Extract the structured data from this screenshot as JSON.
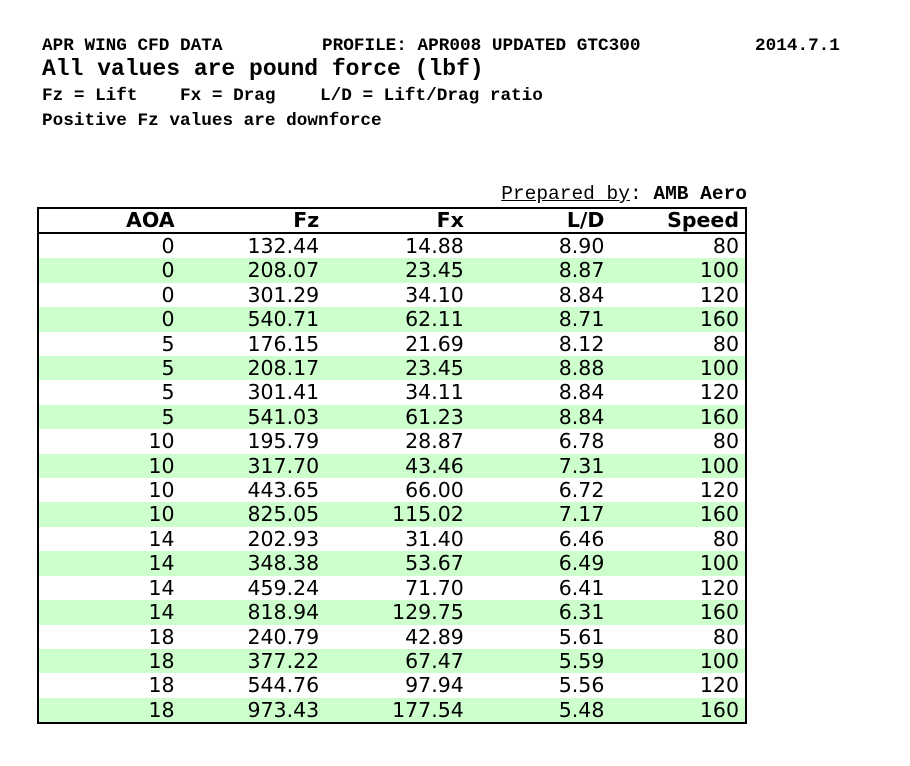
{
  "document": {
    "title": "APR WING CFD DATA",
    "profile": "PROFILE: APR008 UPDATED GTC300",
    "date": "2014.7.1",
    "subtitle": "All values are pound force (lbf)",
    "legend": {
      "fz": "Fz = Lift",
      "fx": "Fx = Drag",
      "ld": "L/D = Lift/Drag ratio"
    },
    "note": "Positive Fz values are downforce",
    "prepared_by": {
      "label": "Prepared by",
      "separator": ": ",
      "value": "AMB Aero"
    }
  },
  "table": {
    "columns": [
      "AOA",
      "Fz",
      "Fx",
      "L/D",
      "Speed"
    ],
    "rows": [
      [
        "0",
        "132.44",
        "14.88",
        "8.90",
        "80"
      ],
      [
        "0",
        "208.07",
        "23.45",
        "8.87",
        "100"
      ],
      [
        "0",
        "301.29",
        "34.10",
        "8.84",
        "120"
      ],
      [
        "0",
        "540.71",
        "62.11",
        "8.71",
        "160"
      ],
      [
        "5",
        "176.15",
        "21.69",
        "8.12",
        "80"
      ],
      [
        "5",
        "208.17",
        "23.45",
        "8.88",
        "100"
      ],
      [
        "5",
        "301.41",
        "34.11",
        "8.84",
        "120"
      ],
      [
        "5",
        "541.03",
        "61.23",
        "8.84",
        "160"
      ],
      [
        "10",
        "195.79",
        "28.87",
        "6.78",
        "80"
      ],
      [
        "10",
        "317.70",
        "43.46",
        "7.31",
        "100"
      ],
      [
        "10",
        "443.65",
        "66.00",
        "6.72",
        "120"
      ],
      [
        "10",
        "825.05",
        "115.02",
        "7.17",
        "160"
      ],
      [
        "14",
        "202.93",
        "31.40",
        "6.46",
        "80"
      ],
      [
        "14",
        "348.38",
        "53.67",
        "6.49",
        "100"
      ],
      [
        "14",
        "459.24",
        "71.70",
        "6.41",
        "120"
      ],
      [
        "14",
        "818.94",
        "129.75",
        "6.31",
        "160"
      ],
      [
        "18",
        "240.79",
        "42.89",
        "5.61",
        "80"
      ],
      [
        "18",
        "377.22",
        "67.47",
        "5.59",
        "100"
      ],
      [
        "18",
        "544.76",
        "97.94",
        "5.56",
        "120"
      ],
      [
        "18",
        "973.43",
        "177.54",
        "5.48",
        "160"
      ]
    ]
  },
  "colors": {
    "row_alt_background": "#ccffcc",
    "border": "#000000",
    "text": "#000000",
    "background": "#ffffff"
  }
}
